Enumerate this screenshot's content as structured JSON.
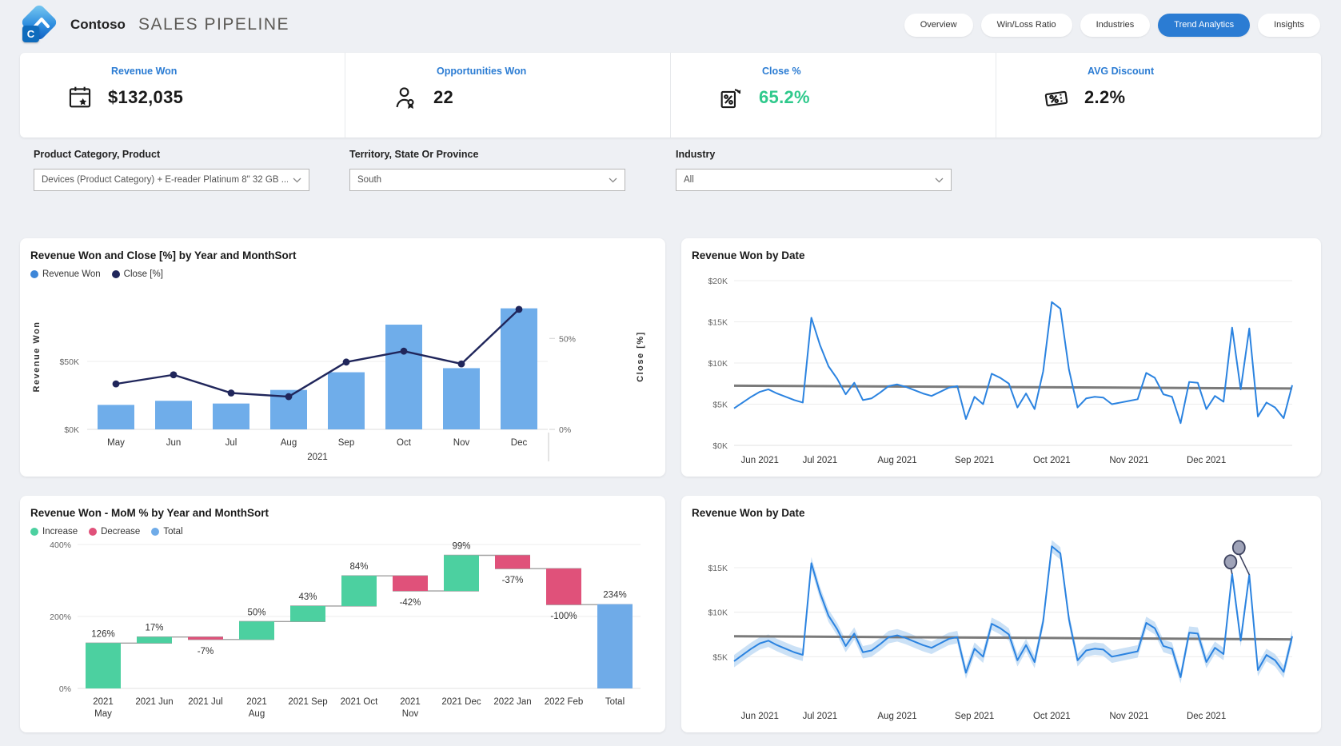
{
  "header": {
    "brand": "Contoso",
    "title": "SALES PIPELINE",
    "nav": [
      {
        "label": "Overview",
        "active": false
      },
      {
        "label": "Win/Loss Ratio",
        "active": false
      },
      {
        "label": "Industries",
        "active": false
      },
      {
        "label": "Trend Analytics",
        "active": true
      },
      {
        "label": "Insights",
        "active": false
      }
    ]
  },
  "kpis": [
    {
      "label": "Revenue Won",
      "value": "$132,035",
      "icon": "calendar-star-icon",
      "value_color": "#1a1a1a"
    },
    {
      "label": "Opportunities Won",
      "value": "22",
      "icon": "person-badge-icon",
      "value_color": "#1a1a1a"
    },
    {
      "label": "Close %",
      "value": "65.2%",
      "icon": "percent-refresh-icon",
      "value_color": "#2fc98c"
    },
    {
      "label": "AVG Discount",
      "value": "2.2%",
      "icon": "discount-tag-icon",
      "value_color": "#1a1a1a"
    }
  ],
  "filters": [
    {
      "label": "Product Category, Product",
      "value": "Devices (Product Category) + E-reader Platinum 8\" 32 GB ..."
    },
    {
      "label": "Territory, State Or Province",
      "value": "South"
    },
    {
      "label": "Industry",
      "value": "All"
    }
  ],
  "colors": {
    "accent_blue": "#2b7cd3",
    "bar_blue": "#6fadea",
    "legend_blue": "#3d86d8",
    "line_navy": "#20265b",
    "kpi_green": "#2fc98c",
    "increase_green": "#4cd0a0",
    "decrease_pink": "#e0517a",
    "total_blue": "#6fabe8",
    "line_blue": "#2b83e0",
    "band_blue": "#a8cdf0",
    "trend_gray": "#7a7a7a",
    "anomaly_gray": "#9fa3b8",
    "anomaly_stroke": "#3d425e"
  },
  "chart_data": [
    {
      "type": "combo",
      "title": "Revenue Won and Close [%] by Year and MonthSort",
      "categories": [
        "May",
        "Jun",
        "Jul",
        "Aug",
        "Sep",
        "Oct",
        "Nov",
        "Dec"
      ],
      "year_label": "2021",
      "series": [
        {
          "name": "Revenue Won",
          "type": "bar",
          "axis": "left",
          "unit": "$K",
          "values": [
            18,
            21,
            19,
            29,
            42,
            77,
            45,
            89
          ]
        },
        {
          "name": "Close [%]",
          "type": "line",
          "axis": "right",
          "unit": "%",
          "values": [
            25,
            30,
            20,
            18,
            37,
            43,
            36,
            66
          ]
        }
      ],
      "y_left": {
        "label": "Revenue Won",
        "ticks": [
          0,
          50
        ],
        "tick_labels": [
          "$0K",
          "$50K"
        ],
        "max": 107
      },
      "y_right": {
        "label": "Close [%]",
        "ticks": [
          0,
          50
        ],
        "tick_labels": [
          "0%",
          "50%"
        ],
        "max": 80
      }
    },
    {
      "type": "line",
      "title": "Revenue Won by Date",
      "xlabel_ticks": [
        "Jun 2021",
        "Jul 2021",
        "Aug 2021",
        "Sep 2021",
        "Oct 2021",
        "Nov 2021",
        "Dec 2021"
      ],
      "x_tick_indices": [
        3,
        10,
        19,
        28,
        37,
        46,
        55
      ],
      "unit": "$K",
      "values_k": [
        4.5,
        5.2,
        5.9,
        6.5,
        6.8,
        6.3,
        5.9,
        5.5,
        5.2,
        15.5,
        12.2,
        9.6,
        8.1,
        6.2,
        7.6,
        5.5,
        5.7,
        6.4,
        7.2,
        7.4,
        7.1,
        6.7,
        6.3,
        6.0,
        6.5,
        7.0,
        7.2,
        3.2,
        5.9,
        5.0,
        8.7,
        8.2,
        7.5,
        4.6,
        6.3,
        4.4,
        9.0,
        17.4,
        16.6,
        9.2,
        4.6,
        5.7,
        5.9,
        5.8,
        5.0,
        5.2,
        5.4,
        5.6,
        8.8,
        8.2,
        6.2,
        5.9,
        2.7,
        7.7,
        7.6,
        4.4,
        6.0,
        5.3,
        14.3,
        6.8,
        14.2,
        3.5,
        5.2,
        4.6,
        3.3,
        7.3
      ],
      "ylim": [
        0,
        20
      ],
      "y_ticks": [
        0,
        5,
        10,
        15,
        20
      ],
      "y_tick_labels": [
        "$0K",
        "$5K",
        "$10K",
        "$15K",
        "$20K"
      ],
      "trend_k": [
        7.25,
        6.9
      ]
    },
    {
      "type": "waterfall",
      "title": "Revenue Won - MoM % by Year and MonthSort",
      "legend": [
        "Increase",
        "Decrease",
        "Total"
      ],
      "categories": [
        [
          "2021",
          "May"
        ],
        [
          "2021 Jun"
        ],
        [
          "2021 Jul"
        ],
        [
          "2021",
          "Aug"
        ],
        [
          "2021 Sep"
        ],
        [
          "2021 Oct"
        ],
        [
          "2021",
          "Nov"
        ],
        [
          "2021 Dec"
        ],
        [
          "2022 Jan"
        ],
        [
          "2022 Feb"
        ],
        [
          "Total"
        ]
      ],
      "values_pct": [
        126,
        17,
        -7,
        50,
        43,
        84,
        -42,
        99,
        -37,
        -100
      ],
      "total_pct": 234,
      "labels": [
        "126%",
        "17%",
        "-7%",
        "50%",
        "43%",
        "84%",
        "-42%",
        "99%",
        "-37%",
        "-100%",
        "234%"
      ],
      "ylim": [
        0,
        400
      ],
      "y_ticks": [
        0,
        200,
        400
      ],
      "y_tick_labels": [
        "0%",
        "200%",
        "400%"
      ]
    },
    {
      "type": "line",
      "title": "Revenue Won by Date",
      "xlabel_ticks": [
        "Jun 2021",
        "Jul 2021",
        "Aug 2021",
        "Sep 2021",
        "Oct 2021",
        "Nov 2021",
        "Dec 2021"
      ],
      "x_tick_indices": [
        3,
        10,
        19,
        28,
        37,
        46,
        55
      ],
      "unit": "$K",
      "values_k": [
        4.5,
        5.2,
        5.9,
        6.5,
        6.8,
        6.3,
        5.9,
        5.5,
        5.2,
        15.5,
        12.2,
        9.6,
        8.1,
        6.2,
        7.6,
        5.5,
        5.7,
        6.4,
        7.2,
        7.4,
        7.1,
        6.7,
        6.3,
        6.0,
        6.5,
        7.0,
        7.2,
        3.2,
        5.9,
        5.0,
        8.7,
        8.2,
        7.5,
        4.6,
        6.3,
        4.4,
        9.0,
        17.4,
        16.6,
        9.2,
        4.6,
        5.7,
        5.9,
        5.8,
        5.0,
        5.2,
        5.4,
        5.6,
        8.8,
        8.2,
        6.2,
        5.9,
        2.7,
        7.7,
        7.6,
        4.4,
        6.0,
        5.3,
        14.3,
        6.8,
        14.2,
        3.5,
        5.2,
        4.6,
        3.3,
        7.3
      ],
      "ylim": [
        0,
        18.5
      ],
      "y_ticks": [
        5,
        10,
        15
      ],
      "y_tick_labels": [
        "$5K",
        "$10K",
        "$15K"
      ],
      "trend_k": [
        7.3,
        6.95
      ],
      "band_k": 0.7,
      "anomalies": [
        {
          "index": 58,
          "offset": [
            -2,
            -15
          ]
        },
        {
          "index": 60,
          "offset": [
            -13,
            -34
          ]
        }
      ]
    }
  ]
}
